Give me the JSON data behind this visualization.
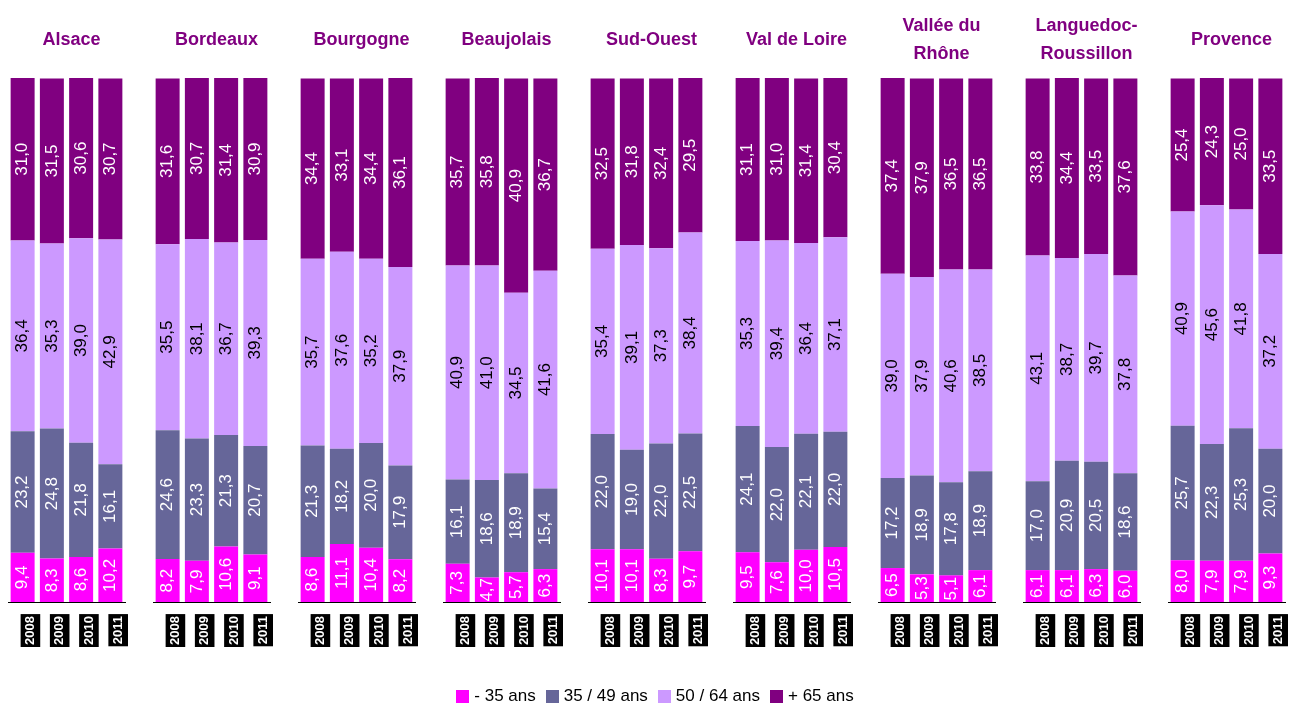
{
  "chart_data": [
    {
      "type": "bar",
      "title": "Alsace",
      "stacked": true,
      "legend": "bottom",
      "categories": [
        "2008",
        "2009",
        "2010",
        "2011"
      ],
      "series": [
        {
          "name": "- 35 ans",
          "color": "#ff00ff",
          "values": [
            9.4,
            8.3,
            8.6,
            10.2
          ],
          "value_labels": [
            "9,4",
            "8,3",
            "8,6",
            "10,2"
          ]
        },
        {
          "name": "35 / 49 ans",
          "color": "#666699",
          "values": [
            23.2,
            24.8,
            21.8,
            16.1
          ],
          "value_labels": [
            "23,2",
            "24,8",
            "21,8",
            "16,1"
          ]
        },
        {
          "name": "50 / 64 ans",
          "color": "#cc99ff",
          "values": [
            36.4,
            35.3,
            39.0,
            42.9
          ],
          "value_labels": [
            "36,4",
            "35,3",
            "39,0",
            "42,9"
          ]
        },
        {
          "name": "+ 65 ans",
          "color": "#800080",
          "values": [
            31.0,
            31.5,
            30.6,
            30.7
          ],
          "value_labels": [
            "31,0",
            "31,5",
            "30,6",
            "30,7"
          ]
        }
      ]
    },
    {
      "type": "bar",
      "title": "Bordeaux",
      "stacked": true,
      "categories": [
        "2008",
        "2009",
        "2010",
        "2011"
      ],
      "series": [
        {
          "color": "#ff00ff",
          "values": [
            8.2,
            7.9,
            10.6,
            9.1
          ],
          "value_labels": [
            "8,2",
            "7,9",
            "10,6",
            "9,1"
          ]
        },
        {
          "color": "#666699",
          "values": [
            24.6,
            23.3,
            21.3,
            20.7
          ],
          "value_labels": [
            "24,6",
            "23,3",
            "21,3",
            "20,7"
          ]
        },
        {
          "color": "#cc99ff",
          "values": [
            35.5,
            38.1,
            36.7,
            39.3
          ],
          "value_labels": [
            "35,5",
            "38,1",
            "36,7",
            "39,3"
          ]
        },
        {
          "color": "#800080",
          "values": [
            31.6,
            30.7,
            31.4,
            30.9
          ],
          "value_labels": [
            "31,6",
            "30,7",
            "31,4",
            "30,9"
          ]
        }
      ]
    },
    {
      "type": "bar",
      "title": "Bourgogne",
      "stacked": true,
      "categories": [
        "2008",
        "2009",
        "2010",
        "2011"
      ],
      "series": [
        {
          "color": "#ff00ff",
          "values": [
            8.6,
            11.1,
            10.4,
            8.2
          ],
          "value_labels": [
            "8,6",
            "11,1",
            "10,4",
            "8,2"
          ]
        },
        {
          "color": "#666699",
          "values": [
            21.3,
            18.2,
            20.0,
            17.9
          ],
          "value_labels": [
            "21,3",
            "18,2",
            "20,0",
            "17,9"
          ]
        },
        {
          "color": "#cc99ff",
          "values": [
            35.7,
            37.6,
            35.2,
            37.9
          ],
          "value_labels": [
            "35,7",
            "37,6",
            "35,2",
            "37,9"
          ]
        },
        {
          "color": "#800080",
          "values": [
            34.4,
            33.1,
            34.4,
            36.1
          ],
          "value_labels": [
            "34,4",
            "33,1",
            "34,4",
            "36,1"
          ]
        }
      ]
    },
    {
      "type": "bar",
      "title": "Beaujolais",
      "stacked": true,
      "categories": [
        "2008",
        "2009",
        "2010",
        "2011"
      ],
      "series": [
        {
          "color": "#ff00ff",
          "values": [
            7.3,
            4.7,
            5.7,
            6.3
          ],
          "value_labels": [
            "7,3",
            "4,7",
            "5,7",
            "6,3"
          ]
        },
        {
          "color": "#666699",
          "values": [
            16.1,
            18.6,
            18.9,
            15.4
          ],
          "value_labels": [
            "16,1",
            "18,6",
            "18,9",
            "15,4"
          ]
        },
        {
          "color": "#cc99ff",
          "values": [
            40.9,
            41.0,
            34.5,
            41.6
          ],
          "value_labels": [
            "40,9",
            "41,0",
            "34,5",
            "41,6"
          ]
        },
        {
          "color": "#800080",
          "values": [
            35.7,
            35.8,
            40.9,
            36.7
          ],
          "value_labels": [
            "35,7",
            "35,8",
            "40,9",
            "36,7"
          ]
        }
      ]
    },
    {
      "type": "bar",
      "title": "Sud-Ouest",
      "stacked": true,
      "categories": [
        "2008",
        "2009",
        "2010",
        "2011"
      ],
      "series": [
        {
          "color": "#ff00ff",
          "values": [
            10.1,
            10.1,
            8.3,
            9.7
          ],
          "value_labels": [
            "10,1",
            "10,1",
            "8,3",
            "9,7"
          ]
        },
        {
          "color": "#666699",
          "values": [
            22.0,
            19.0,
            22.0,
            22.5
          ],
          "value_labels": [
            "22,0",
            "19,0",
            "22,0",
            "22,5"
          ]
        },
        {
          "color": "#cc99ff",
          "values": [
            35.4,
            39.1,
            37.3,
            38.4
          ],
          "value_labels": [
            "35,4",
            "39,1",
            "37,3",
            "38,4"
          ]
        },
        {
          "color": "#800080",
          "values": [
            32.5,
            31.8,
            32.4,
            29.5
          ],
          "value_labels": [
            "32,5",
            "31,8",
            "32,4",
            "29,5"
          ]
        }
      ]
    },
    {
      "type": "bar",
      "title": "Val de Loire",
      "stacked": true,
      "categories": [
        "2008",
        "2009",
        "2010",
        "2011"
      ],
      "series": [
        {
          "color": "#ff00ff",
          "values": [
            9.5,
            7.6,
            10.0,
            10.5
          ],
          "value_labels": [
            "9,5",
            "7,6",
            "10,0",
            "10,5"
          ]
        },
        {
          "color": "#666699",
          "values": [
            24.1,
            22.0,
            22.1,
            22.0
          ],
          "value_labels": [
            "24,1",
            "22,0",
            "22,1",
            "22,0"
          ]
        },
        {
          "color": "#cc99ff",
          "values": [
            35.3,
            39.4,
            36.4,
            37.1
          ],
          "value_labels": [
            "35,3",
            "39,4",
            "36,4",
            "37,1"
          ]
        },
        {
          "color": "#800080",
          "values": [
            31.1,
            31.0,
            31.4,
            30.4
          ],
          "value_labels": [
            "31,1",
            "31,0",
            "31,4",
            "30,4"
          ]
        }
      ]
    },
    {
      "type": "bar",
      "title": "Vallée du Rhône",
      "stacked": true,
      "categories": [
        "2008",
        "2009",
        "2010",
        "2011"
      ],
      "series": [
        {
          "color": "#ff00ff",
          "values": [
            6.5,
            5.3,
            5.1,
            6.1
          ],
          "value_labels": [
            "6,5",
            "5,3",
            "5,1",
            "6,1"
          ]
        },
        {
          "color": "#666699",
          "values": [
            17.2,
            18.9,
            17.8,
            18.9
          ],
          "value_labels": [
            "17,2",
            "18,9",
            "17,8",
            "18,9"
          ]
        },
        {
          "color": "#cc99ff",
          "values": [
            39.0,
            37.9,
            40.6,
            38.5
          ],
          "value_labels": [
            "39,0",
            "37,9",
            "40,6",
            "38,5"
          ]
        },
        {
          "color": "#800080",
          "values": [
            37.4,
            37.9,
            36.5,
            36.5
          ],
          "value_labels": [
            "37,4",
            "37,9",
            "36,5",
            "36,5"
          ]
        }
      ]
    },
    {
      "type": "bar",
      "title": "Languedoc-Roussillon",
      "stacked": true,
      "categories": [
        "2008",
        "2009",
        "2010",
        "2011"
      ],
      "series": [
        {
          "color": "#ff00ff",
          "values": [
            6.1,
            6.1,
            6.3,
            6.0
          ],
          "value_labels": [
            "6,1",
            "6,1",
            "6,3",
            "6,0"
          ]
        },
        {
          "color": "#666699",
          "values": [
            17.0,
            20.9,
            20.5,
            18.6
          ],
          "value_labels": [
            "17,0",
            "20,9",
            "20,5",
            "18,6"
          ]
        },
        {
          "color": "#cc99ff",
          "values": [
            43.1,
            38.7,
            39.7,
            37.8
          ],
          "value_labels": [
            "43,1",
            "38,7",
            "39,7",
            "37,8"
          ]
        },
        {
          "color": "#800080",
          "values": [
            33.8,
            34.4,
            33.5,
            37.6
          ],
          "value_labels": [
            "33,8",
            "34,4",
            "33,5",
            "37,6"
          ]
        }
      ]
    },
    {
      "type": "bar",
      "title": "Provence",
      "stacked": true,
      "categories": [
        "2008",
        "2009",
        "2010",
        "2011"
      ],
      "series": [
        {
          "color": "#ff00ff",
          "values": [
            8.0,
            7.9,
            7.9,
            9.3
          ],
          "value_labels": [
            "8,0",
            "7,9",
            "7,9",
            "9,3"
          ]
        },
        {
          "color": "#666699",
          "values": [
            25.7,
            22.3,
            25.3,
            20.0
          ],
          "value_labels": [
            "25,7",
            "22,3",
            "25,3",
            "20,0"
          ]
        },
        {
          "color": "#cc99ff",
          "values": [
            40.9,
            45.6,
            41.8,
            37.2
          ],
          "value_labels": [
            "40,9",
            "45,6",
            "41,8",
            "37,2"
          ]
        },
        {
          "color": "#800080",
          "values": [
            25.4,
            24.3,
            25.0,
            33.5
          ],
          "value_labels": [
            "25,4",
            "24,3",
            "25,0",
            "33,5"
          ]
        }
      ]
    }
  ]
}
